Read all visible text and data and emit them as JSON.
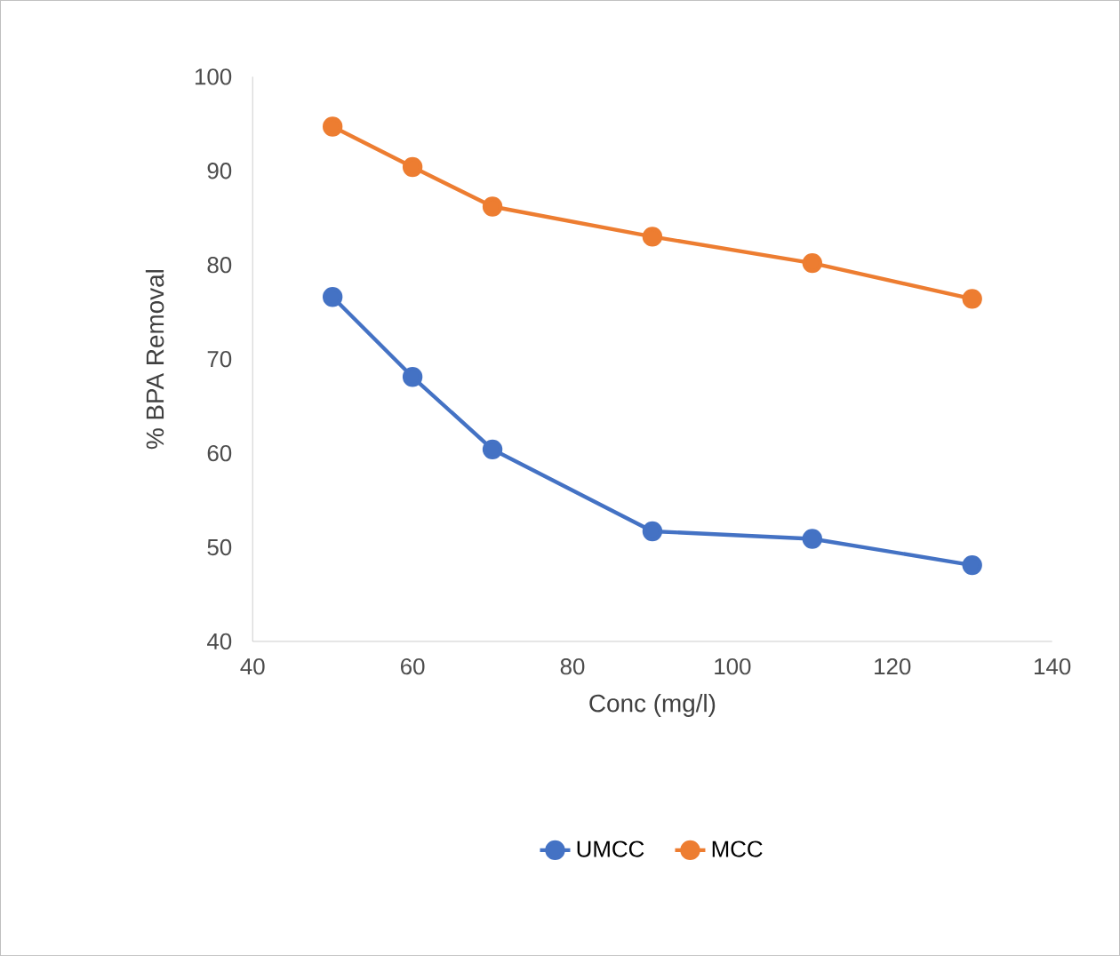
{
  "chart_data": {
    "type": "line",
    "xlabel": "Conc (mg/l)",
    "ylabel": "% BPA  Removal",
    "x": [
      50,
      60,
      70,
      90,
      110,
      130
    ],
    "series": [
      {
        "name": "UMCC",
        "color": "#4472c4",
        "values": [
          76.6,
          68.1,
          60.4,
          51.7,
          50.9,
          48.1
        ]
      },
      {
        "name": "MCC",
        "color": "#ed7d31",
        "values": [
          94.7,
          90.4,
          86.2,
          83.0,
          80.2,
          76.4
        ]
      }
    ],
    "xlim": [
      40,
      140
    ],
    "xticks": [
      40,
      60,
      80,
      100,
      120,
      140
    ],
    "ylim": [
      40,
      100
    ],
    "yticks": [
      40,
      50,
      60,
      70,
      80,
      90,
      100
    ],
    "grid": false,
    "legend": "bottom",
    "marker": "circle",
    "line_style": "solid"
  }
}
